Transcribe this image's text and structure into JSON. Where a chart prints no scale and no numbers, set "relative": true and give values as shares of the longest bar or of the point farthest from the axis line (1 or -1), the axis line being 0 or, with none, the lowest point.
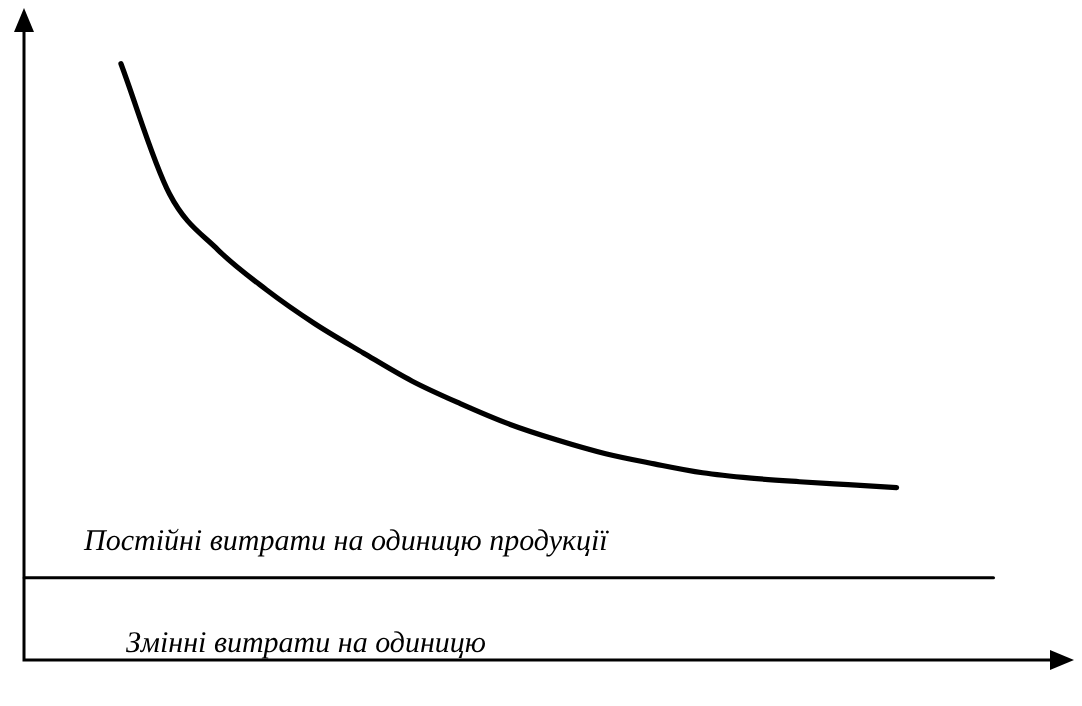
{
  "chart_data": {
    "type": "line",
    "relative": true,
    "categories": [
      null,
      null,
      null,
      null,
      null,
      null,
      null,
      null,
      null,
      null,
      null,
      null,
      null,
      null,
      null,
      null,
      null,
      null,
      null,
      null,
      null,
      null
    ],
    "series": [
      {
        "color": "#000000",
        "values": [
          null,
          null,
          1,
          0.782,
          0.688,
          0.621,
          0.564,
          0.515,
          0.468,
          0.43,
          0.396,
          0.369,
          0.346,
          0.329,
          0.314,
          0.305,
          0.299,
          0.294,
          0.289,
          null,
          null,
          null
        ]
      },
      {
        "color": "#000000",
        "values": [
          0.138,
          0.138,
          0.138,
          0.138,
          0.138,
          0.138,
          0.138,
          0.138,
          0.138,
          0.138,
          0.138,
          0.138,
          0.138,
          0.138,
          0.138,
          0.138,
          0.138,
          0.138,
          0.138,
          0.138,
          0.138,
          null
        ]
      }
    ],
    "annotations": [
      "Постійні витрати на одиницю продукції",
      "Змінні витрати на одиницю"
    ],
    "line_style": "solid"
  }
}
